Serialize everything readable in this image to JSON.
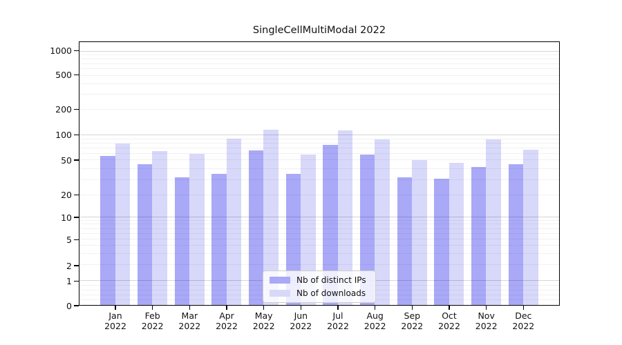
{
  "chart_data": {
    "type": "bar",
    "title": "SingleCellMultiModal 2022",
    "categories": [
      "Jan",
      "Feb",
      "Mar",
      "Apr",
      "May",
      "Jun",
      "Jul",
      "Aug",
      "Sep",
      "Oct",
      "Nov",
      "Dec"
    ],
    "x_year_label": "2022",
    "series": [
      {
        "name": "Nb of distinct IPs",
        "color": "#a9a9f8",
        "values": [
          57,
          45,
          32,
          35,
          66,
          35,
          77,
          59,
          32,
          31,
          42,
          45
        ]
      },
      {
        "name": "Nb of downloads",
        "color": "#d8d8fa",
        "values": [
          80,
          65,
          60,
          91,
          117,
          59,
          114,
          90,
          50,
          47,
          90,
          67
        ]
      }
    ],
    "y_axis": {
      "scale": "symlog",
      "tick_values": [
        0,
        1,
        2,
        5,
        10,
        20,
        50,
        100,
        200,
        500,
        1000
      ],
      "tick_labels": [
        "0",
        "1",
        "2",
        "5",
        "10",
        "20",
        "50",
        "100",
        "200",
        "500",
        "1000"
      ]
    },
    "legend": {
      "position": "lower center",
      "entries": [
        "Nb of distinct IPs",
        "Nb of downloads"
      ]
    },
    "grid": true,
    "background_color": "#ffffff"
  }
}
